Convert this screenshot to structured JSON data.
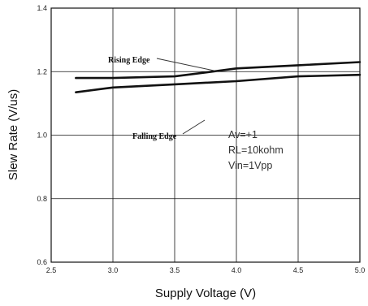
{
  "chart_data": {
    "type": "line",
    "title": "",
    "xlabel": "Supply Voltage (V)",
    "ylabel": "Slew Rate (V/us)",
    "xlim": [
      2.5,
      5.0
    ],
    "ylim": [
      0.6,
      1.4
    ],
    "xticks": [
      "2.5",
      "3.0",
      "3.5",
      "4.0",
      "4.5",
      "5.0"
    ],
    "yticks": [
      "0.6",
      "0.8",
      "1.0",
      "1.2",
      "1.4"
    ],
    "grid": true,
    "series": [
      {
        "name": "Rising Edge",
        "x": [
          2.7,
          3.0,
          3.5,
          3.8,
          4.0,
          4.5,
          5.0
        ],
        "y": [
          1.18,
          1.18,
          1.185,
          1.2,
          1.21,
          1.22,
          1.23
        ]
      },
      {
        "name": "Falling Edge",
        "x": [
          2.7,
          3.0,
          3.5,
          4.0,
          4.5,
          5.0
        ],
        "y": [
          1.135,
          1.15,
          1.16,
          1.17,
          1.185,
          1.19
        ]
      }
    ],
    "annotations": [
      "Av=+1",
      "RL=10kohm",
      "Vin=1Vpp"
    ]
  }
}
